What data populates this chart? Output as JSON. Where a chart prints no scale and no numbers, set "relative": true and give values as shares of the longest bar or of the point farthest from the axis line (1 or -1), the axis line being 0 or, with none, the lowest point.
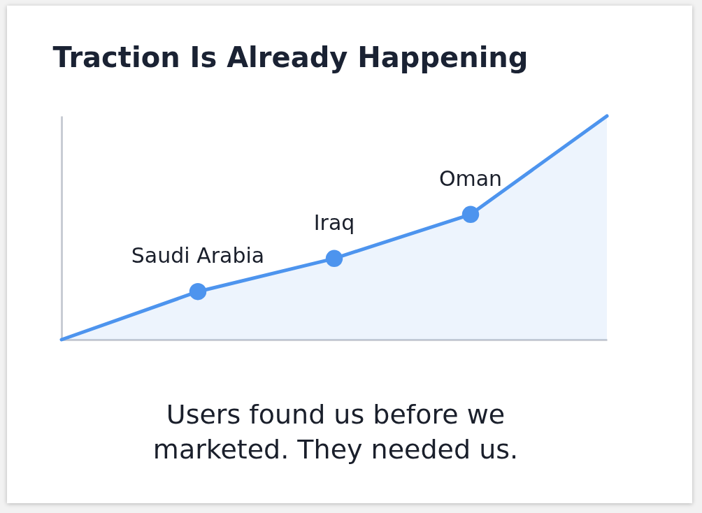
{
  "chart_data": {
    "type": "area",
    "title": "Traction Is Already Happening",
    "relative": true,
    "categories": [
      null,
      null,
      null,
      null,
      null
    ],
    "series": [
      {
        "color": "#4d94ee",
        "values": [
          0,
          0.215,
          0.363,
          0.56,
          1
        ]
      }
    ],
    "marker": "circle",
    "annotations": [
      {
        "text": "Saudi Arabia",
        "y": 0.215
      },
      {
        "text": "Iraq",
        "y": 0.363
      },
      {
        "text": "Oman",
        "y": 0.56
      },
      "Users found us before we marketed. They needed us."
    ]
  }
}
